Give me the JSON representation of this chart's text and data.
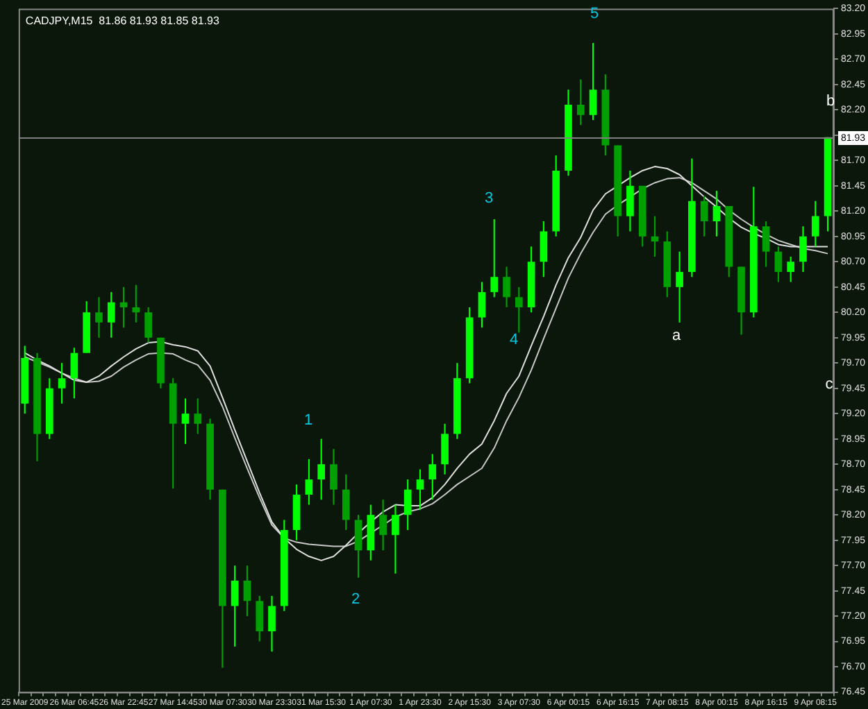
{
  "chart_data": {
    "type": "candlestick",
    "title": "CADJPY,M15  81.86 81.93 81.85 81.93",
    "categories": [
      "25 Mar 2009",
      null,
      null,
      null,
      "26 Mar 06:45",
      null,
      null,
      null,
      "26 Mar 22:45",
      null,
      null,
      null,
      "27 Mar 14:45",
      null,
      null,
      null,
      "30 Mar 07:30",
      null,
      null,
      null,
      "30 Mar 23:30",
      null,
      null,
      null,
      "31 Mar 15:30",
      null,
      null,
      null,
      "1 Apr 07:30",
      null,
      null,
      null,
      "1 Apr 23:30",
      null,
      null,
      null,
      "2 Apr 15:30",
      null,
      null,
      null,
      "3 Apr 07:30",
      null,
      null,
      null,
      "6 Apr 00:15",
      null,
      null,
      null,
      "6 Apr 16:15",
      null,
      null,
      null,
      "7 Apr 08:15",
      null,
      null,
      null,
      "8 Apr 00:15",
      null,
      null,
      null,
      "8 Apr 16:15",
      null,
      null,
      null,
      "9 Apr 08:15",
      null
    ],
    "series": [
      {
        "colors": [
          "#00ff00",
          "#00a000",
          "#00ff00",
          "#00ff00",
          "#00ff00",
          "#00ff00",
          "#00a000",
          "#00ff00",
          "#00a000",
          "#00a000",
          "#00a000",
          "#00a000",
          "#00a000",
          "#00ff00",
          "#00a000",
          "#00a000",
          "#00a000",
          "#00ff00",
          "#00a000",
          "#00a000",
          "#00ff00",
          "#00ff00",
          "#00ff00",
          "#00ff00",
          "#00ff00",
          "#00a000",
          "#00a000",
          "#00a000",
          "#00ff00",
          "#00a000",
          "#00ff00",
          "#00ff00",
          "#00ff00",
          "#00ff00",
          "#00ff00",
          "#00ff00",
          "#00ff00",
          "#00ff00",
          "#00ff00",
          "#00a000",
          "#00a000",
          "#00ff00",
          "#00ff00",
          "#00ff00",
          "#00ff00",
          "#00a000",
          "#00ff00",
          "#00a000",
          "#00a000",
          "#00ff00",
          "#00a000",
          "#00a000",
          "#00a000",
          "#00ff00",
          "#00ff00",
          "#00a000",
          "#00ff00",
          "#00a000",
          "#00a000",
          "#00ff00",
          "#00a000",
          "#00a000",
          "#00ff00",
          "#00ff00",
          "#00ff00",
          "#00ff00"
        ],
        "ohlc": [
          [
            79.3,
            79.87,
            79.2,
            79.75
          ],
          [
            79.75,
            79.8,
            78.73,
            79.0
          ],
          [
            79.0,
            79.55,
            78.95,
            79.45
          ],
          [
            79.45,
            79.7,
            79.3,
            79.55
          ],
          [
            79.55,
            79.85,
            79.35,
            79.8
          ],
          [
            79.8,
            80.31,
            79.8,
            80.2
          ],
          [
            80.2,
            80.35,
            79.95,
            80.1
          ],
          [
            80.1,
            80.4,
            79.95,
            80.3
          ],
          [
            80.3,
            80.45,
            80.05,
            80.25
          ],
          [
            80.25,
            80.47,
            80.1,
            80.2
          ],
          [
            80.2,
            80.25,
            79.9,
            79.95
          ],
          [
            79.95,
            79.95,
            79.45,
            79.5
          ],
          [
            79.5,
            79.55,
            78.46,
            79.1
          ],
          [
            79.1,
            79.35,
            78.9,
            79.2
          ],
          [
            79.2,
            79.35,
            79.0,
            79.1
          ],
          [
            79.1,
            79.15,
            78.35,
            78.45
          ],
          [
            78.45,
            78.45,
            76.69,
            77.3
          ],
          [
            77.3,
            77.7,
            76.9,
            77.55
          ],
          [
            77.55,
            77.7,
            77.2,
            77.35
          ],
          [
            77.35,
            77.4,
            76.95,
            77.05
          ],
          [
            77.05,
            77.4,
            76.85,
            77.3
          ],
          [
            77.3,
            78.15,
            77.25,
            78.05
          ],
          [
            78.05,
            78.5,
            77.95,
            78.4
          ],
          [
            78.4,
            78.75,
            78.3,
            78.55
          ],
          [
            78.55,
            78.95,
            78.35,
            78.7
          ],
          [
            78.7,
            78.85,
            78.3,
            78.45
          ],
          [
            78.45,
            78.6,
            78.05,
            78.15
          ],
          [
            78.15,
            78.2,
            77.58,
            77.85
          ],
          [
            77.85,
            78.3,
            77.75,
            78.2
          ],
          [
            78.2,
            78.35,
            77.85,
            78.0
          ],
          [
            78.0,
            78.3,
            77.62,
            78.2
          ],
          [
            78.2,
            78.55,
            78.05,
            78.45
          ],
          [
            78.45,
            78.65,
            78.25,
            78.55
          ],
          [
            78.55,
            78.8,
            78.35,
            78.7
          ],
          [
            78.7,
            79.1,
            78.6,
            79.0
          ],
          [
            79.0,
            79.7,
            78.95,
            79.55
          ],
          [
            79.55,
            80.25,
            79.5,
            80.15
          ],
          [
            80.15,
            80.5,
            80.05,
            80.4
          ],
          [
            80.4,
            81.12,
            80.35,
            80.55
          ],
          [
            80.55,
            80.65,
            80.25,
            80.35
          ],
          [
            80.35,
            80.45,
            80.0,
            80.25
          ],
          [
            80.25,
            80.85,
            80.2,
            80.7
          ],
          [
            80.7,
            81.1,
            80.55,
            81.0
          ],
          [
            81.0,
            81.75,
            80.95,
            81.6
          ],
          [
            81.6,
            82.4,
            81.55,
            82.25
          ],
          [
            82.25,
            82.5,
            82.05,
            82.15
          ],
          [
            82.15,
            82.86,
            82.1,
            82.4
          ],
          [
            82.4,
            82.55,
            81.75,
            81.85
          ],
          [
            81.85,
            81.85,
            80.95,
            81.15
          ],
          [
            81.15,
            81.6,
            81.0,
            81.45
          ],
          [
            81.45,
            81.45,
            80.85,
            80.95
          ],
          [
            80.95,
            81.15,
            80.75,
            80.9
          ],
          [
            80.9,
            81.0,
            80.35,
            80.45
          ],
          [
            80.45,
            80.8,
            80.1,
            80.6
          ],
          [
            80.6,
            81.72,
            80.55,
            81.3
          ],
          [
            81.3,
            81.35,
            80.95,
            81.1
          ],
          [
            81.1,
            81.4,
            80.95,
            81.25
          ],
          [
            81.25,
            81.25,
            80.55,
            80.65
          ],
          [
            80.65,
            80.65,
            79.98,
            80.2
          ],
          [
            80.2,
            81.44,
            80.15,
            81.05
          ],
          [
            81.05,
            81.1,
            80.65,
            80.8
          ],
          [
            80.8,
            80.85,
            80.5,
            80.6
          ],
          [
            80.6,
            80.75,
            80.5,
            80.7
          ],
          [
            80.7,
            81.05,
            80.6,
            80.95
          ],
          [
            80.95,
            81.3,
            80.85,
            81.15
          ],
          [
            81.15,
            81.93,
            81.0,
            81.93
          ]
        ]
      },
      {
        "type": "line",
        "color": "#e0e0e0",
        "values": [
          79.8,
          79.73,
          79.67,
          79.6,
          79.53,
          79.51,
          79.57,
          79.67,
          79.76,
          79.84,
          79.9,
          79.91,
          79.88,
          79.86,
          79.82,
          79.67,
          79.36,
          79.04,
          78.73,
          78.42,
          78.13,
          77.97,
          77.86,
          77.79,
          77.75,
          77.79,
          77.9,
          78.02,
          78.13,
          78.23,
          78.3,
          78.29,
          78.29,
          78.37,
          78.5,
          78.66,
          78.8,
          78.9,
          79.13,
          79.4,
          79.57,
          79.87,
          80.16,
          80.47,
          80.74,
          80.94,
          81.21,
          81.37,
          81.45,
          81.53,
          81.6,
          81.64,
          81.62,
          81.56,
          81.45,
          81.34,
          81.24,
          81.13,
          81.04,
          80.98,
          80.93,
          80.87,
          80.85,
          80.85,
          80.85,
          80.85
        ]
      },
      {
        "type": "line",
        "color": "#c8c8c8",
        "values": [
          79.76,
          79.71,
          79.66,
          79.6,
          79.55,
          79.51,
          79.52,
          79.57,
          79.66,
          79.73,
          79.79,
          79.8,
          79.79,
          79.73,
          79.68,
          79.53,
          79.27,
          78.96,
          78.66,
          78.37,
          78.1,
          77.97,
          77.93,
          77.91,
          77.9,
          77.89,
          77.89,
          77.94,
          78.02,
          78.1,
          78.18,
          78.23,
          78.26,
          78.31,
          78.4,
          78.5,
          78.58,
          78.66,
          78.86,
          79.13,
          79.36,
          79.63,
          79.94,
          80.24,
          80.54,
          80.78,
          80.99,
          81.17,
          81.26,
          81.34,
          81.42,
          81.48,
          81.52,
          81.53,
          81.48,
          81.4,
          81.32,
          81.21,
          81.12,
          81.04,
          80.97,
          80.91,
          80.87,
          80.83,
          80.81,
          80.78
        ]
      }
    ],
    "ylim": [
      76.45,
      83.2
    ],
    "yticks": [
      {
        "value": 76.45,
        "label": "76.45"
      },
      {
        "value": 76.7,
        "label": "76.70"
      },
      {
        "value": 76.95,
        "label": "76.95"
      },
      {
        "value": 77.2,
        "label": "77.20"
      },
      {
        "value": 77.45,
        "label": "77.45"
      },
      {
        "value": 77.7,
        "label": "77.70"
      },
      {
        "value": 77.95,
        "label": "77.95"
      },
      {
        "value": 78.2,
        "label": "78.20"
      },
      {
        "value": 78.45,
        "label": "78.45"
      },
      {
        "value": 78.7,
        "label": "78.70"
      },
      {
        "value": 78.95,
        "label": "78.95"
      },
      {
        "value": 79.2,
        "label": "79.20"
      },
      {
        "value": 79.45,
        "label": "79.45"
      },
      {
        "value": 79.7,
        "label": "79.70"
      },
      {
        "value": 79.95,
        "label": "79.95"
      },
      {
        "value": 80.2,
        "label": "80.20"
      },
      {
        "value": 80.45,
        "label": "80.45"
      },
      {
        "value": 80.7,
        "label": "80.70"
      },
      {
        "value": 80.95,
        "label": "80.95"
      },
      {
        "value": 81.2,
        "label": "81.20"
      },
      {
        "value": 81.45,
        "label": "81.45"
      },
      {
        "value": 81.7,
        "label": "81.70"
      },
      {
        "value": 81.95,
        "label": null
      },
      {
        "value": 82.2,
        "label": "82.20"
      },
      {
        "value": 82.45,
        "label": "82.45"
      },
      {
        "value": 82.7,
        "label": "82.70"
      },
      {
        "value": 82.95,
        "label": "82.95"
      },
      {
        "value": 83.2,
        "label": "83.20"
      }
    ],
    "ref_lines": [
      {
        "axis": "y",
        "value": 81.93,
        "label": "81.93",
        "color": "#808080"
      }
    ],
    "annotations": [
      "1",
      "2",
      "3",
      "4",
      "5",
      "a",
      "b",
      "c"
    ],
    "marker": "none",
    "line_style": "solid",
    "grid": false,
    "legend": false
  }
}
